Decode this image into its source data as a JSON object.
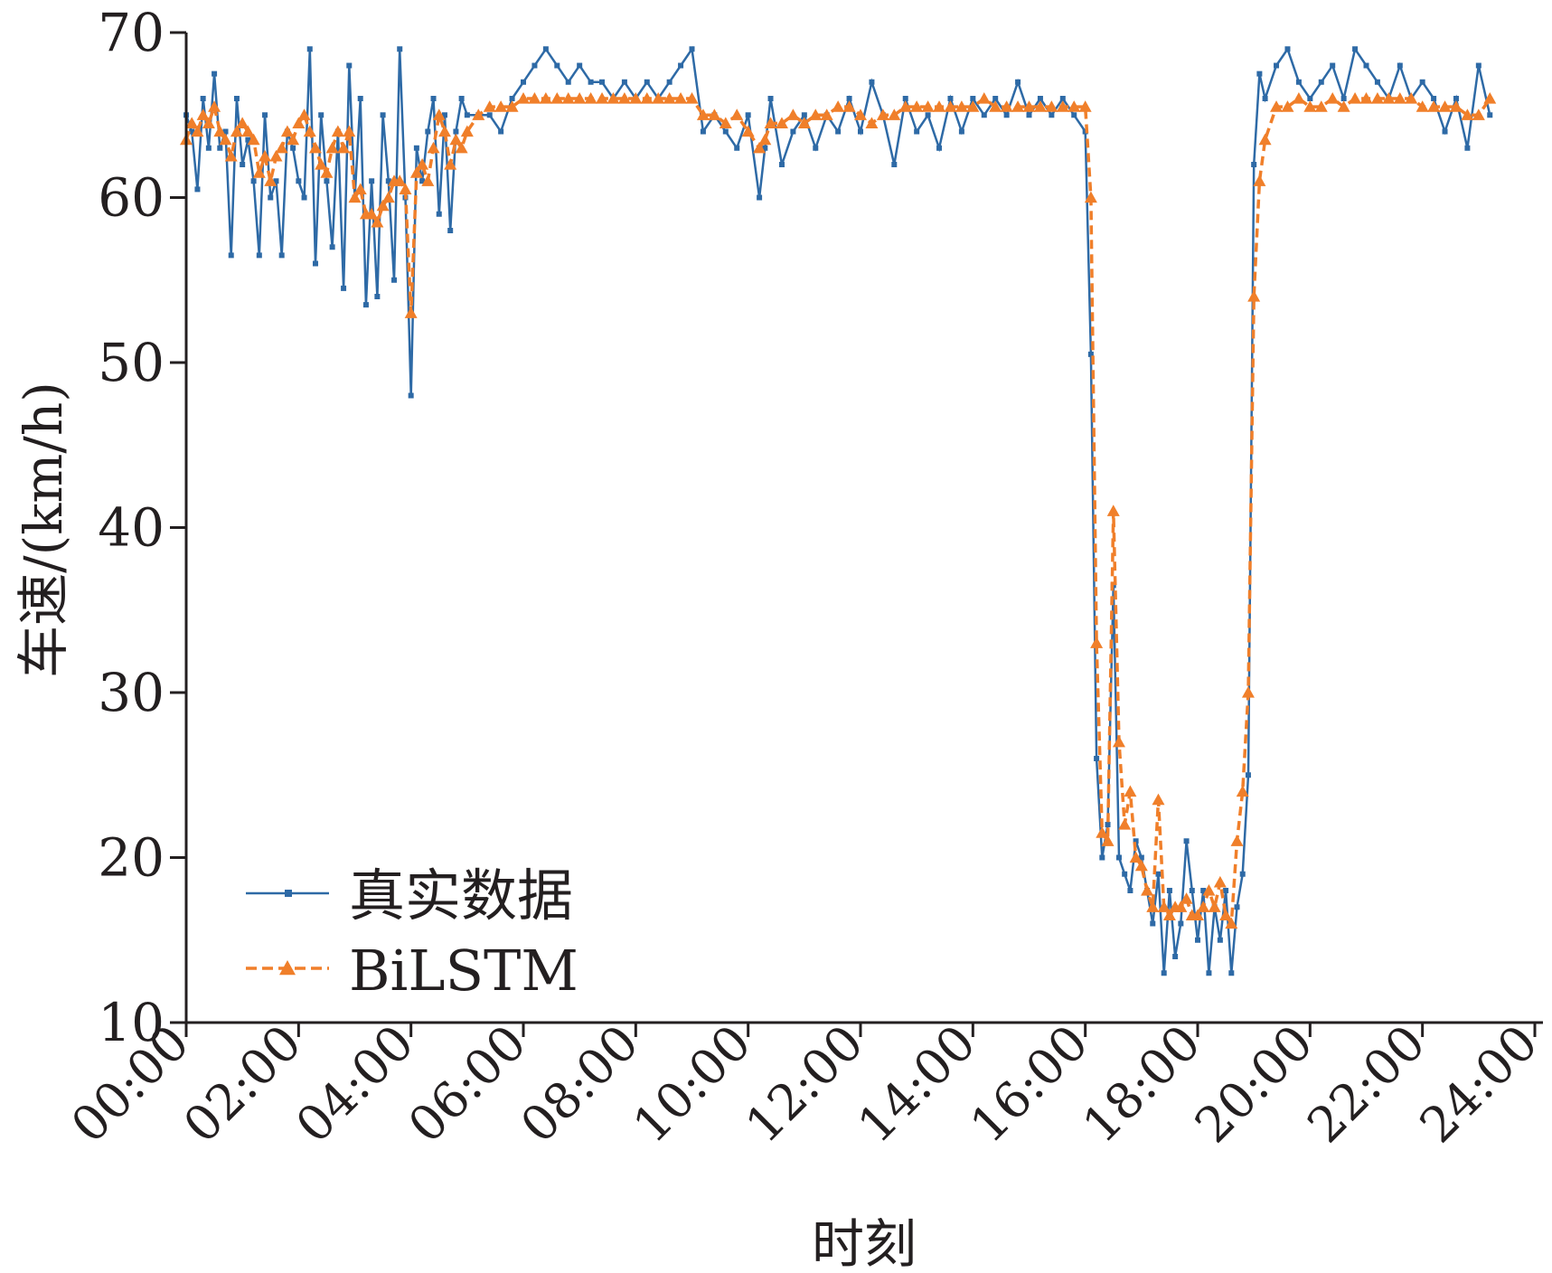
{
  "chart_data": {
    "type": "line",
    "title": "",
    "xlabel": "时刻",
    "ylabel": "车速/(km/h)",
    "xlim": [
      0,
      24
    ],
    "ylim": [
      10,
      70
    ],
    "x_ticks": [
      "00:00",
      "02:00",
      "04:00",
      "06:00",
      "08:00",
      "10:00",
      "12:00",
      "14:00",
      "16:00",
      "18:00",
      "20:00",
      "22:00",
      "24:00"
    ],
    "y_ticks": [
      "10",
      "20",
      "30",
      "40",
      "50",
      "60",
      "70"
    ],
    "grid": false,
    "legend_position": "bottom-left",
    "series": [
      {
        "name": "真实数据",
        "color": "#2e6aa6",
        "marker": "square",
        "line": "solid",
        "x": [
          0.0,
          0.1,
          0.2,
          0.3,
          0.4,
          0.5,
          0.6,
          0.7,
          0.8,
          0.9,
          1.0,
          1.1,
          1.2,
          1.3,
          1.4,
          1.5,
          1.6,
          1.7,
          1.8,
          1.9,
          2.0,
          2.1,
          2.2,
          2.3,
          2.4,
          2.5,
          2.6,
          2.7,
          2.8,
          2.9,
          3.0,
          3.1,
          3.2,
          3.3,
          3.4,
          3.5,
          3.6,
          3.7,
          3.8,
          3.9,
          4.0,
          4.1,
          4.2,
          4.3,
          4.4,
          4.5,
          4.6,
          4.7,
          4.8,
          4.9,
          5.0,
          5.2,
          5.4,
          5.6,
          5.8,
          6.0,
          6.2,
          6.4,
          6.6,
          6.8,
          7.0,
          7.2,
          7.4,
          7.6,
          7.8,
          8.0,
          8.2,
          8.4,
          8.6,
          8.8,
          9.0,
          9.2,
          9.4,
          9.6,
          9.8,
          10.0,
          10.2,
          10.3,
          10.4,
          10.6,
          10.8,
          11.0,
          11.2,
          11.4,
          11.6,
          11.8,
          12.0,
          12.2,
          12.4,
          12.6,
          12.8,
          13.0,
          13.2,
          13.4,
          13.6,
          13.8,
          14.0,
          14.2,
          14.4,
          14.6,
          14.8,
          15.0,
          15.2,
          15.4,
          15.6,
          15.8,
          16.0,
          16.1,
          16.2,
          16.3,
          16.4,
          16.5,
          16.6,
          16.7,
          16.8,
          16.9,
          17.0,
          17.1,
          17.2,
          17.3,
          17.4,
          17.5,
          17.6,
          17.7,
          17.8,
          17.9,
          18.0,
          18.1,
          18.2,
          18.3,
          18.4,
          18.5,
          18.6,
          18.7,
          18.8,
          18.9,
          19.0,
          19.1,
          19.2,
          19.4,
          19.6,
          19.8,
          20.0,
          20.2,
          20.4,
          20.6,
          20.8,
          21.0,
          21.2,
          21.4,
          21.6,
          21.8,
          22.0,
          22.2,
          22.4,
          22.6,
          22.8,
          23.0,
          23.2
        ],
        "y": [
          65,
          64,
          60.5,
          66,
          63,
          67.5,
          63,
          64,
          56.5,
          66,
          62,
          63.5,
          61,
          56.5,
          65,
          60,
          61,
          56.5,
          64,
          63,
          61,
          60,
          69,
          56,
          65,
          61,
          57,
          64,
          54.5,
          68,
          60,
          66,
          53.5,
          61,
          54,
          65,
          61,
          55,
          69,
          60,
          48,
          63,
          61,
          64,
          66,
          59,
          65,
          58,
          64,
          66,
          65,
          65,
          65,
          64,
          66,
          67,
          68,
          69,
          68,
          67,
          68,
          67,
          67,
          66,
          67,
          66,
          67,
          66,
          67,
          68,
          69,
          64,
          65,
          64,
          63,
          65,
          60,
          63,
          66,
          62,
          64,
          65,
          63,
          65,
          64,
          66,
          64,
          67,
          65,
          62,
          66,
          64,
          65,
          63,
          66,
          64,
          66,
          65,
          66,
          65,
          67,
          65,
          66,
          65,
          66,
          65,
          64,
          50.5,
          26,
          20,
          22,
          36.5,
          20,
          19,
          18,
          21,
          20,
          18,
          16,
          19,
          13,
          18,
          14,
          16,
          21,
          18,
          15,
          18,
          13,
          17,
          15,
          18,
          13,
          17,
          19,
          25,
          62,
          67.5,
          66,
          68,
          69,
          67,
          66,
          67,
          68,
          66,
          69,
          68,
          67,
          66,
          68,
          66,
          67,
          66,
          64,
          66,
          63,
          68,
          65
        ]
      },
      {
        "name": "BiLSTM",
        "color": "#f07f2a",
        "marker": "triangle",
        "line": "dashed",
        "x": [
          0.0,
          0.1,
          0.2,
          0.3,
          0.4,
          0.5,
          0.6,
          0.7,
          0.8,
          0.9,
          1.0,
          1.1,
          1.2,
          1.3,
          1.4,
          1.5,
          1.6,
          1.7,
          1.8,
          1.9,
          2.0,
          2.1,
          2.2,
          2.3,
          2.4,
          2.5,
          2.6,
          2.7,
          2.8,
          2.9,
          3.0,
          3.1,
          3.2,
          3.3,
          3.4,
          3.5,
          3.6,
          3.7,
          3.8,
          3.9,
          4.0,
          4.1,
          4.2,
          4.3,
          4.4,
          4.5,
          4.6,
          4.7,
          4.8,
          4.9,
          5.0,
          5.2,
          5.4,
          5.6,
          5.8,
          6.0,
          6.2,
          6.4,
          6.6,
          6.8,
          7.0,
          7.2,
          7.4,
          7.6,
          7.8,
          8.0,
          8.2,
          8.4,
          8.6,
          8.8,
          9.0,
          9.2,
          9.4,
          9.6,
          9.8,
          10.0,
          10.2,
          10.3,
          10.4,
          10.6,
          10.8,
          11.0,
          11.2,
          11.4,
          11.6,
          11.8,
          12.0,
          12.2,
          12.4,
          12.6,
          12.8,
          13.0,
          13.2,
          13.4,
          13.6,
          13.8,
          14.0,
          14.2,
          14.4,
          14.6,
          14.8,
          15.0,
          15.2,
          15.4,
          15.6,
          15.8,
          16.0,
          16.1,
          16.2,
          16.3,
          16.4,
          16.5,
          16.6,
          16.7,
          16.8,
          16.9,
          17.0,
          17.1,
          17.2,
          17.3,
          17.4,
          17.5,
          17.6,
          17.7,
          17.8,
          17.9,
          18.0,
          18.1,
          18.2,
          18.3,
          18.4,
          18.5,
          18.6,
          18.7,
          18.8,
          18.9,
          19.0,
          19.1,
          19.2,
          19.4,
          19.6,
          19.8,
          20.0,
          20.2,
          20.4,
          20.6,
          20.8,
          21.0,
          21.2,
          21.4,
          21.6,
          21.8,
          22.0,
          22.2,
          22.4,
          22.6,
          22.8,
          23.0,
          23.2
        ],
        "y": [
          63.5,
          64.5,
          64,
          65,
          64.5,
          65.5,
          64,
          63.5,
          62.5,
          64,
          64.5,
          64,
          63.5,
          61.5,
          62.5,
          61,
          62.5,
          63,
          64,
          63.5,
          64.5,
          65,
          64,
          63,
          62,
          61.5,
          63,
          64,
          63,
          64,
          60,
          60.5,
          59,
          59,
          58.5,
          59.5,
          60,
          61,
          61,
          60.5,
          53,
          61.5,
          62,
          61,
          63,
          65,
          64,
          62,
          63.5,
          63,
          64,
          65,
          65.5,
          65.5,
          65.5,
          66,
          66,
          66,
          66,
          66,
          66,
          66,
          66,
          66,
          66,
          66,
          66,
          66,
          66,
          66,
          66,
          65,
          65,
          64.5,
          65,
          64,
          63,
          63.5,
          64.5,
          64.5,
          65,
          64.5,
          65,
          65,
          65.5,
          65.5,
          65,
          64.5,
          65,
          65,
          65.5,
          65.5,
          65.5,
          65.5,
          65.5,
          65.5,
          65.5,
          66,
          65.5,
          65.5,
          65.5,
          65.5,
          65.5,
          65.5,
          65.5,
          65.5,
          65.5,
          60,
          33,
          21.5,
          21,
          41,
          27,
          22,
          24,
          20,
          19.5,
          18,
          17,
          23.5,
          17,
          16.5,
          17,
          17,
          17.5,
          16.5,
          16.5,
          17,
          18,
          17,
          18.5,
          16.5,
          16,
          21,
          24,
          30,
          54,
          61,
          63.5,
          65.5,
          65.5,
          66,
          65.5,
          65.5,
          66,
          65.5,
          66,
          66,
          66,
          66,
          66,
          66,
          65.5,
          65.5,
          65.5,
          65.5,
          65,
          65,
          66
        ]
      }
    ]
  }
}
